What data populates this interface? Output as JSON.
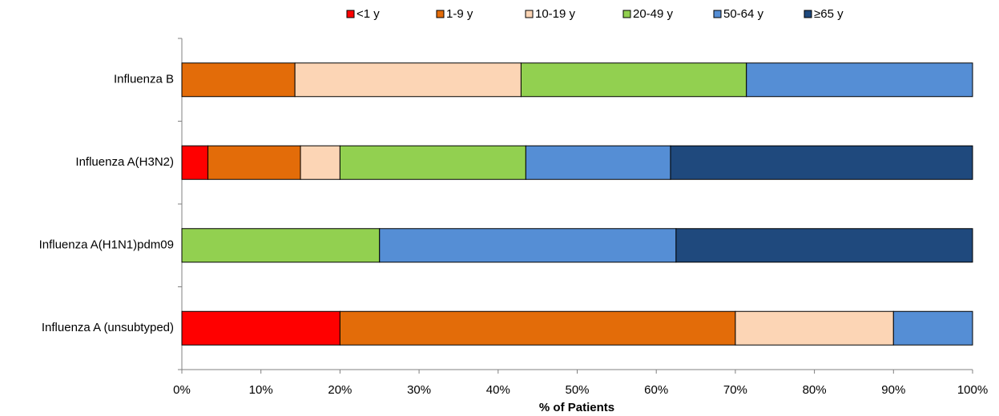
{
  "chart_data": {
    "type": "stacked-barh",
    "xlabel": "% of Patients",
    "categories": [
      "Influenza B",
      "Influenza A(H3N2)",
      "Influenza A(H1N1)pdm09",
      "Influenza A (unsubtyped)"
    ],
    "series": [
      {
        "name": "<1 y",
        "color": "#ff0000",
        "values": [
          0,
          3.3,
          0,
          20
        ]
      },
      {
        "name": "1-9 y",
        "color": "#e36c09",
        "values": [
          14.3,
          11.7,
          0,
          50
        ]
      },
      {
        "name": "10-19 y",
        "color": "#fcd5b5",
        "values": [
          28.6,
          5.0,
          0,
          20
        ]
      },
      {
        "name": "20-49 y",
        "color": "#92d050",
        "values": [
          28.5,
          23.5,
          25,
          0
        ]
      },
      {
        "name": "50-64 y",
        "color": "#558ed5",
        "values": [
          28.6,
          18.3,
          37.5,
          10
        ]
      },
      {
        "name": "≥65 y",
        "color": "#1f497d",
        "values": [
          0,
          38.2,
          37.5,
          0
        ]
      }
    ],
    "xlim": [
      0,
      100
    ],
    "xticks": [
      {
        "value": 0,
        "label": "0%"
      },
      {
        "value": 10,
        "label": "10%"
      },
      {
        "value": 20,
        "label": "20%"
      },
      {
        "value": 30,
        "label": "30%"
      },
      {
        "value": 40,
        "label": "40%"
      },
      {
        "value": 50,
        "label": "50%"
      },
      {
        "value": 60,
        "label": "60%"
      },
      {
        "value": 70,
        "label": "70%"
      },
      {
        "value": 80,
        "label": "80%"
      },
      {
        "value": 90,
        "label": "90%"
      },
      {
        "value": 100,
        "label": "100%"
      }
    ],
    "legend": "top"
  }
}
